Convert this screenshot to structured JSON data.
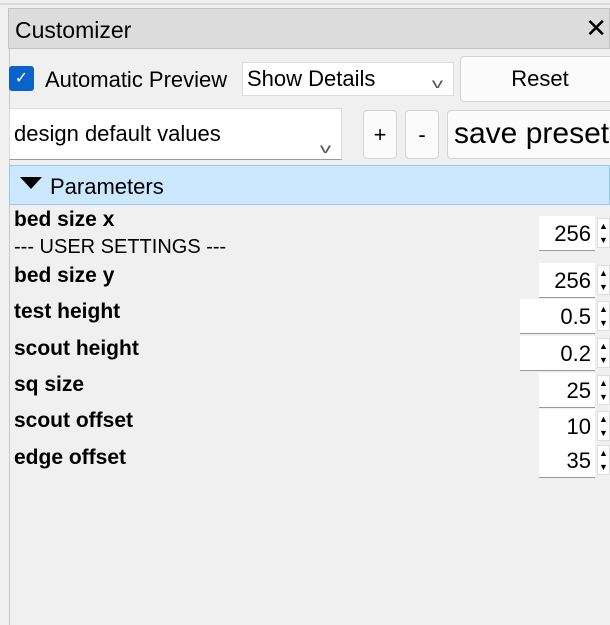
{
  "panel": {
    "title": "Customizer",
    "close_icon": "close-icon"
  },
  "toolbar": {
    "auto_preview_label": "Automatic Preview",
    "auto_preview_checked": true,
    "details_value": "Show Details",
    "reset_label": "Reset"
  },
  "presets": {
    "selected": "design default values",
    "add_label": "+",
    "remove_label": "-",
    "save_label": "save preset"
  },
  "parameters": {
    "group_label": "Parameters",
    "group_note": "--- USER SETTINGS ---",
    "items": [
      {
        "label": "bed size x",
        "value": "256"
      },
      {
        "label": "bed size y",
        "value": "256"
      },
      {
        "label": "test height",
        "value": "0.5"
      },
      {
        "label": "scout height",
        "value": "0.2"
      },
      {
        "label": "sq size",
        "value": "25"
      },
      {
        "label": "scout offset",
        "value": "10"
      },
      {
        "label": "edge offset",
        "value": "35"
      }
    ]
  },
  "colors": {
    "checkbox": "#0a63c9",
    "group_header": "#cce8ff"
  }
}
